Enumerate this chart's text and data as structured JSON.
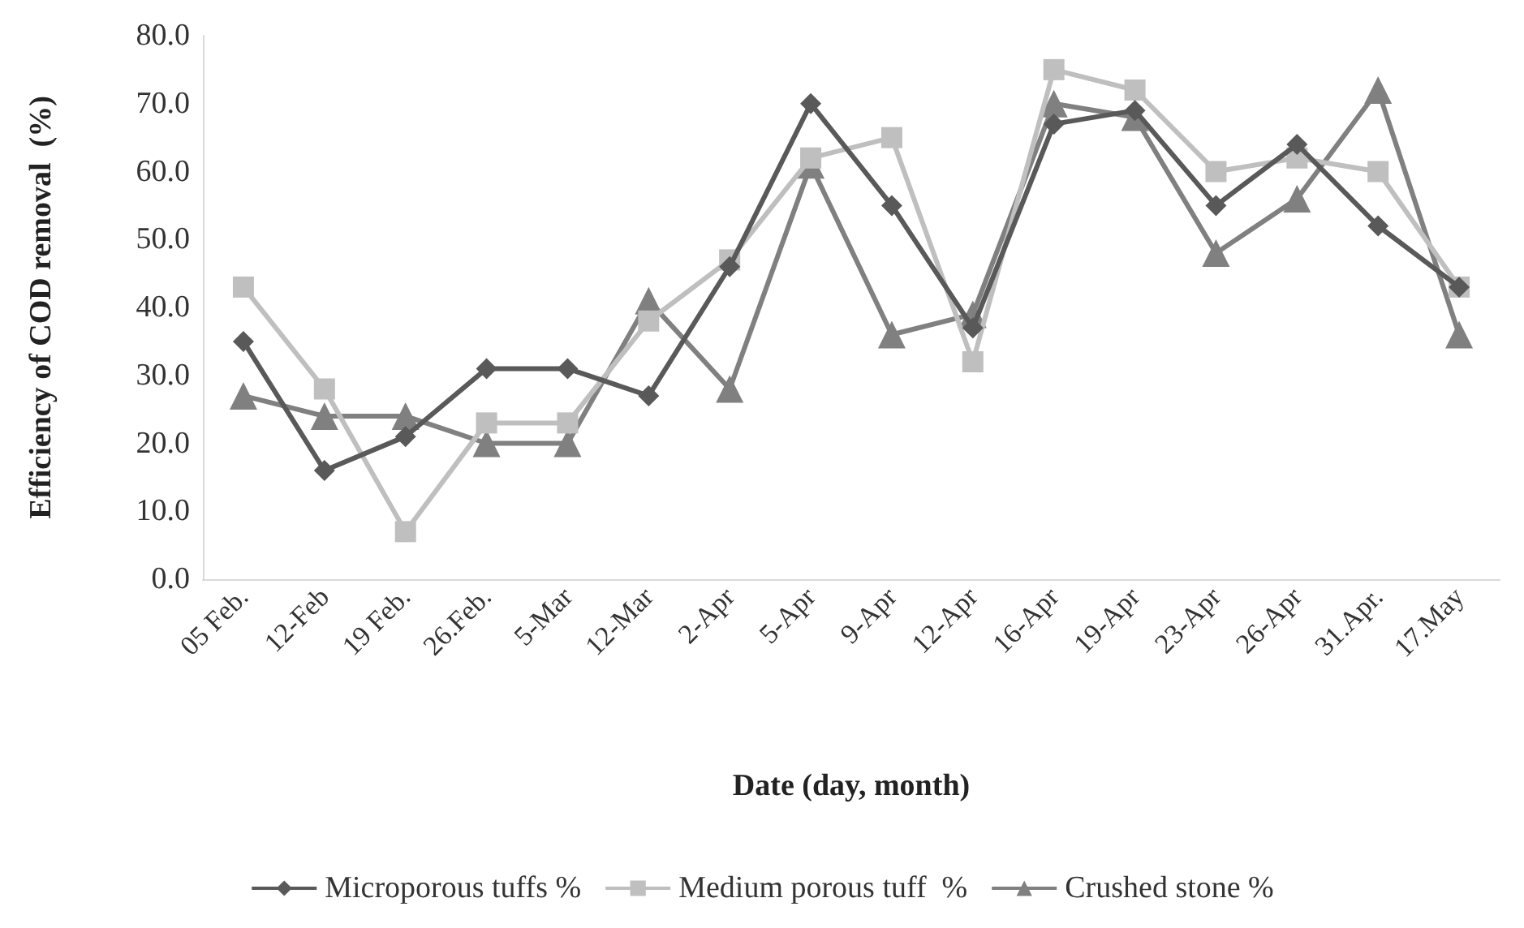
{
  "chart_data": {
    "type": "line",
    "xlabel": "Date (day, month)",
    "ylabel": "Efficiency of COD removal  (%)",
    "categories": [
      "05 Feb.",
      "12-Feb",
      "19 Feb.",
      "26.Feb.",
      "5-Mar",
      "12-Mar",
      "2-Apr",
      "5-Apr",
      "9-Apr",
      "12-Apr",
      "16-Apr",
      "19-Apr",
      "23-Apr",
      "26-Apr",
      "31.Apr.",
      "17.May"
    ],
    "series": [
      {
        "name": "Microporous tuffs %",
        "color": "#595959",
        "marker": "diamond",
        "values": [
          35,
          16,
          21,
          31,
          31,
          27,
          46,
          70,
          55,
          37,
          67,
          69,
          55,
          64,
          52,
          43
        ]
      },
      {
        "name": "Medium porous tuff  %",
        "color": "#bfbfbf",
        "marker": "square",
        "values": [
          43,
          28,
          7,
          23,
          23,
          38,
          47,
          62,
          65,
          32,
          75,
          72,
          60,
          62,
          60,
          43
        ]
      },
      {
        "name": "Crushed stone %",
        "color": "#808080",
        "marker": "triangle",
        "values": [
          27,
          24,
          24,
          20,
          20,
          41,
          28,
          61,
          36,
          39,
          70,
          68,
          48,
          56,
          72,
          36
        ]
      }
    ],
    "ylim": [
      0,
      80
    ],
    "yticks": [
      {
        "value": 0,
        "label": "0.0"
      },
      {
        "value": 10,
        "label": "10.0"
      },
      {
        "value": 20,
        "label": "20.0"
      },
      {
        "value": 30,
        "label": "30.0"
      },
      {
        "value": 40,
        "label": "40.0"
      },
      {
        "value": 50,
        "label": "50.0"
      },
      {
        "value": 60,
        "label": "60.0"
      },
      {
        "value": 70,
        "label": "70.0"
      },
      {
        "value": 80,
        "label": "80.0"
      }
    ],
    "grid": false,
    "legend": "bottom",
    "line_style": "solid"
  }
}
